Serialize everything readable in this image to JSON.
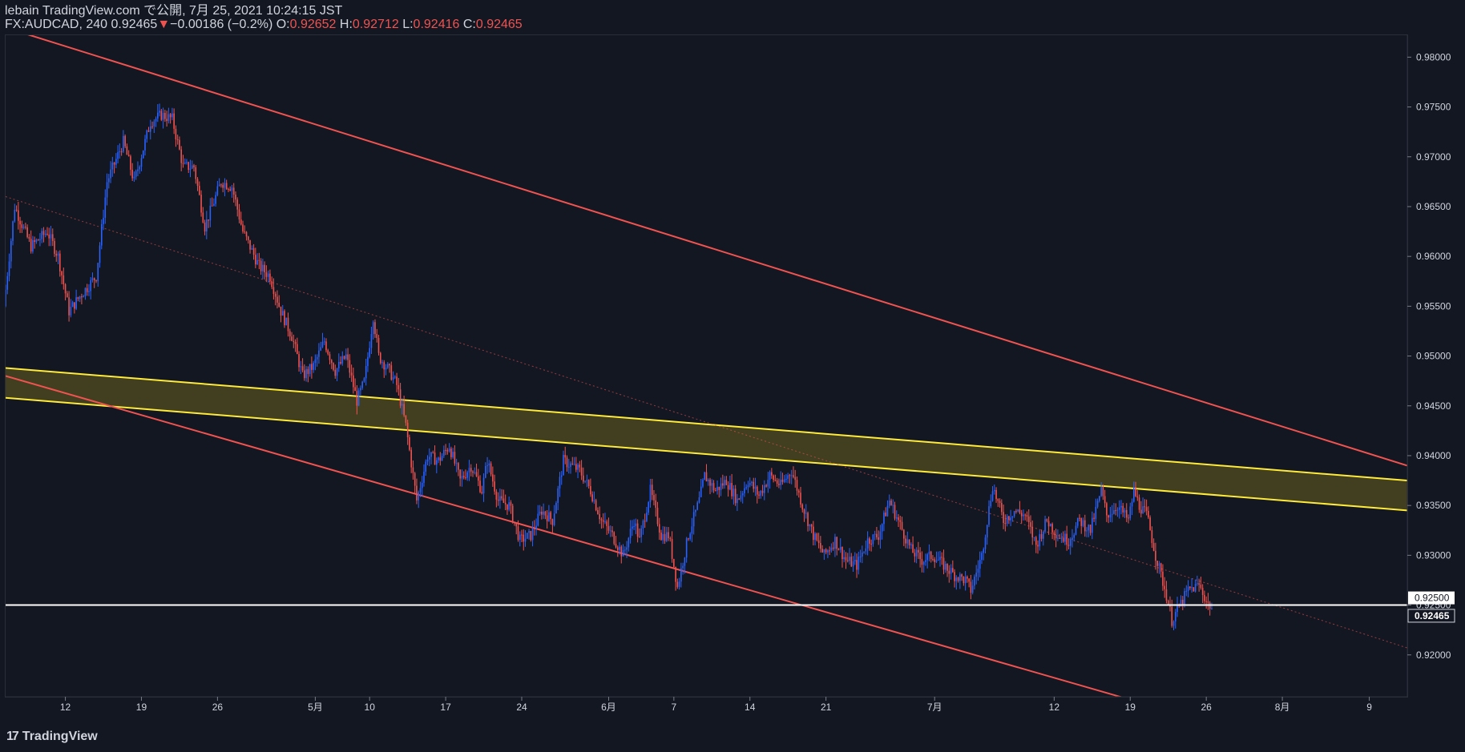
{
  "header": {
    "line1": "lebain TradingView.com で公開, 7月 25, 2021 10:24:15 JST",
    "symbol": "FX:AUDCAD, 240 0.92465",
    "change": "−0.00186 (−0.2%)",
    "o_label": "O:",
    "o_value": "0.92652",
    "h_label": "H:",
    "h_value": "0.92712",
    "l_label": "L:",
    "l_value": "0.92416",
    "c_label": "C:",
    "c_value": "0.92465"
  },
  "brand": {
    "name": "TradingView",
    "logo_text": "17"
  },
  "colors": {
    "background": "#131722",
    "up": "#2962ff",
    "down": "#ef5350",
    "channel": "#f05350",
    "zone_line": "#ffeb3b",
    "zone_fill": "#4a4620",
    "hline": "#ffffff"
  },
  "chart_data": {
    "type": "candlestick",
    "symbol": "FX:AUDCAD",
    "interval": "240",
    "ylim": [
      0.9158,
      0.9822
    ],
    "y_ticks": [
      "0.98000",
      "0.97500",
      "0.97000",
      "0.96500",
      "0.96000",
      "0.95500",
      "0.95000",
      "0.94500",
      "0.94000",
      "0.93500",
      "0.93000",
      "0.92500",
      "0.92000"
    ],
    "x_ticks": [
      "12",
      "19",
      "26",
      "5月",
      "10",
      "17",
      "24",
      "6月",
      "7",
      "14",
      "21",
      "7月",
      "12",
      "19",
      "26",
      "8月",
      "9"
    ],
    "x_tick_days": [
      12,
      19,
      26,
      35,
      40,
      47,
      54,
      62,
      68,
      75,
      82,
      92,
      103,
      110,
      117,
      124,
      132
    ],
    "x_range_days": [
      6.5,
      135.5
    ],
    "current_price": {
      "label": "0.92465",
      "value": 0.92465
    },
    "horizontal_line": {
      "label": "0.92500",
      "value": 0.925
    },
    "anchors": [
      [
        6.5,
        0.955
      ],
      [
        7.5,
        0.965
      ],
      [
        9,
        0.961
      ],
      [
        10.5,
        0.9625
      ],
      [
        11.5,
        0.96
      ],
      [
        12.5,
        0.9545
      ],
      [
        13.5,
        0.956
      ],
      [
        15,
        0.958
      ],
      [
        16,
        0.9675
      ],
      [
        17.5,
        0.9715
      ],
      [
        18.5,
        0.9675
      ],
      [
        20,
        0.9735
      ],
      [
        21,
        0.9742
      ],
      [
        22,
        0.9738
      ],
      [
        23,
        0.969
      ],
      [
        24,
        0.969
      ],
      [
        25,
        0.963
      ],
      [
        26.5,
        0.9675
      ],
      [
        27.5,
        0.967
      ],
      [
        28.5,
        0.9625
      ],
      [
        30,
        0.959
      ],
      [
        31,
        0.958
      ],
      [
        32,
        0.9545
      ],
      [
        33,
        0.952
      ],
      [
        34,
        0.948
      ],
      [
        35,
        0.949
      ],
      [
        36,
        0.9515
      ],
      [
        37,
        0.9485
      ],
      [
        38,
        0.95
      ],
      [
        39,
        0.9455
      ],
      [
        39.7,
        0.9475
      ],
      [
        40.5,
        0.954
      ],
      [
        41,
        0.95
      ],
      [
        42,
        0.9485
      ],
      [
        42.7,
        0.947
      ],
      [
        43.5,
        0.943
      ],
      [
        44.5,
        0.9355
      ],
      [
        45.5,
        0.94
      ],
      [
        46.5,
        0.9395
      ],
      [
        47.5,
        0.941
      ],
      [
        48.5,
        0.9375
      ],
      [
        49.5,
        0.939
      ],
      [
        50.5,
        0.9365
      ],
      [
        51,
        0.9395
      ],
      [
        52,
        0.9355
      ],
      [
        53,
        0.935
      ],
      [
        54,
        0.9315
      ],
      [
        55,
        0.932
      ],
      [
        56,
        0.9345
      ],
      [
        57,
        0.9335
      ],
      [
        58,
        0.9395
      ],
      [
        59.5,
        0.9385
      ],
      [
        60.5,
        0.9365
      ],
      [
        61.5,
        0.9335
      ],
      [
        62.5,
        0.932
      ],
      [
        63.5,
        0.93
      ],
      [
        64.5,
        0.9335
      ],
      [
        65,
        0.9315
      ],
      [
        66,
        0.9365
      ],
      [
        67,
        0.932
      ],
      [
        67.7,
        0.932
      ],
      [
        68.5,
        0.9268
      ],
      [
        69.5,
        0.932
      ],
      [
        70.5,
        0.9355
      ],
      [
        71,
        0.938
      ],
      [
        72,
        0.9365
      ],
      [
        73,
        0.9375
      ],
      [
        74,
        0.9355
      ],
      [
        75,
        0.9375
      ],
      [
        76,
        0.936
      ],
      [
        77,
        0.938
      ],
      [
        78,
        0.937
      ],
      [
        79,
        0.9385
      ],
      [
        80,
        0.935
      ],
      [
        81,
        0.932
      ],
      [
        82,
        0.93
      ],
      [
        83,
        0.9315
      ],
      [
        84,
        0.9295
      ],
      [
        85,
        0.929
      ],
      [
        86,
        0.9315
      ],
      [
        87,
        0.932
      ],
      [
        88,
        0.9355
      ],
      [
        89,
        0.933
      ],
      [
        90,
        0.9305
      ],
      [
        91,
        0.9295
      ],
      [
        92,
        0.93
      ],
      [
        93,
        0.929
      ],
      [
        94,
        0.928
      ],
      [
        95,
        0.9275
      ],
      [
        95.5,
        0.9265
      ],
      [
        96.5,
        0.93
      ],
      [
        97.5,
        0.937
      ],
      [
        98.5,
        0.9335
      ],
      [
        99.5,
        0.9345
      ],
      [
        100.5,
        0.934
      ],
      [
        101.5,
        0.931
      ],
      [
        102.5,
        0.9335
      ],
      [
        103.5,
        0.932
      ],
      [
        104.5,
        0.9315
      ],
      [
        105.5,
        0.9335
      ],
      [
        106.5,
        0.9325
      ],
      [
        107.5,
        0.9365
      ],
      [
        108,
        0.934
      ],
      [
        109,
        0.935
      ],
      [
        110,
        0.9335
      ],
      [
        110.5,
        0.9365
      ],
      [
        111,
        0.935
      ],
      [
        111.7,
        0.934
      ],
      [
        112.5,
        0.93
      ],
      [
        113.5,
        0.926
      ],
      [
        114,
        0.9235
      ],
      [
        114.5,
        0.9245
      ],
      [
        115.5,
        0.9265
      ],
      [
        116.5,
        0.927
      ],
      [
        117.5,
        0.92465
      ]
    ],
    "channel_upper": {
      "start": [
        7,
        0.9828
      ],
      "end": [
        135.5,
        0.939
      ]
    },
    "channel_lower": {
      "start": [
        6.5,
        0.948
      ],
      "end": [
        135.5,
        0.9075
      ]
    },
    "channel_mid": {
      "start": [
        6.5,
        0.966
      ],
      "end": [
        135.5,
        0.9207
      ]
    },
    "resistance_zone": {
      "top": {
        "start": [
          6.5,
          0.9488
        ],
        "end": [
          135.5,
          0.9375
        ]
      },
      "bottom": {
        "start": [
          6.5,
          0.9458
        ],
        "end": [
          135.5,
          0.9345
        ]
      }
    }
  }
}
